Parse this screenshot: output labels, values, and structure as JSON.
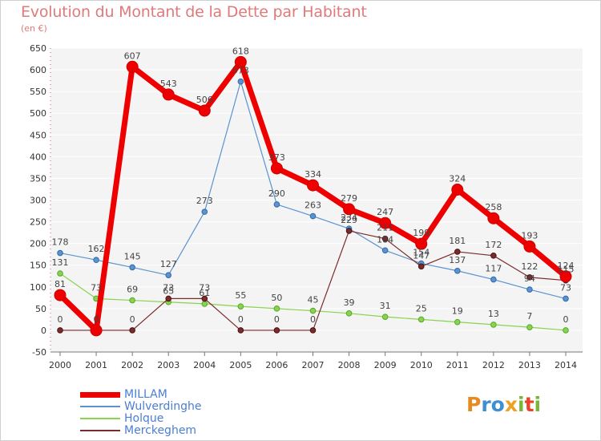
{
  "title": "Evolution du Montant de la Dette par Habitant",
  "unit": "(en €)",
  "logo": {
    "letters": [
      "P",
      "r",
      "o",
      "x",
      "i",
      "t",
      "i"
    ],
    "colors": [
      "#e58b1f",
      "#3f8fd3",
      "#3f8fd3",
      "#f0a020",
      "#7ab63a",
      "#e7442a",
      "#7ab63a"
    ]
  },
  "chart_data": {
    "type": "line",
    "title": "Evolution du Montant de la Dette par Habitant",
    "ylabel": "(en €)",
    "xlabel": "",
    "ylim": [
      -50,
      650
    ],
    "yticks": [
      -50,
      0,
      50,
      100,
      150,
      200,
      250,
      300,
      350,
      400,
      450,
      500,
      550,
      600,
      650
    ],
    "categories": [
      "2000",
      "2001",
      "2002",
      "2003",
      "2004",
      "2005",
      "2006",
      "2007",
      "2008",
      "2009",
      "2010",
      "2011",
      "2012",
      "2013",
      "2014"
    ],
    "grid": "horizontal",
    "legend": "bottom-left",
    "series": [
      {
        "name": "MILLAM",
        "color": "#ee0000",
        "values": [
          81,
          0,
          607,
          543,
          506,
          618,
          373,
          334,
          279,
          247,
          199,
          324,
          258,
          193,
          124
        ]
      },
      {
        "name": "Wulverdinghe",
        "color": "#5b93cf",
        "values": [
          178,
          162,
          145,
          127,
          273,
          573,
          290,
          263,
          234,
          184,
          154,
          137,
          117,
          94,
          73
        ]
      },
      {
        "name": "Holque",
        "color": "#88d34f",
        "values": [
          131,
          73,
          69,
          65,
          61,
          55,
          50,
          45,
          39,
          31,
          25,
          19,
          13,
          7,
          0
        ]
      },
      {
        "name": "Merckeghem",
        "color": "#7b2b2b",
        "values": [
          0,
          0,
          0,
          73,
          73,
          0,
          0,
          0,
          229,
          211,
          147,
          181,
          172,
          122,
          115
        ]
      }
    ]
  }
}
